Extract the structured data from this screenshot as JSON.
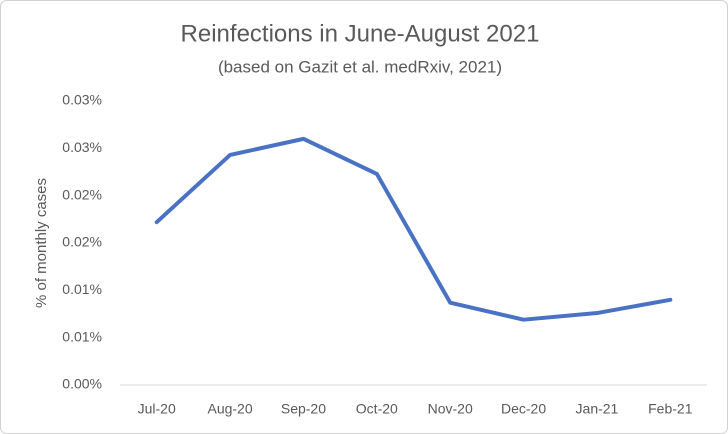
{
  "chart_data": {
    "type": "line",
    "title": "Reinfections in June-August 2021",
    "subtitle": "(based on Gazit et al. medRxiv, 2021)",
    "y_label": "% of monthly cases",
    "categories": [
      "Jul-20",
      "Aug-20",
      "Sep-20",
      "Oct-20",
      "Nov-20",
      "Dec-20",
      "Jan-21",
      "Feb-21"
    ],
    "series": [
      {
        "color": "#4a72c4",
        "values": [
          0.0172,
          0.0243,
          0.026,
          0.0223,
          0.0087,
          0.0069,
          0.0076,
          0.009
        ]
      }
    ],
    "ylim": [
      0,
      0.03
    ],
    "yticks": [
      {
        "value": 0,
        "label": "0.00%"
      },
      {
        "value": 0.005,
        "label": "0.01%"
      },
      {
        "value": 0.01,
        "label": "0.01%"
      },
      {
        "value": 0.015,
        "label": "0.02%"
      },
      {
        "value": 0.02,
        "label": "0.02%"
      },
      {
        "value": 0.025,
        "label": "0.03%"
      },
      {
        "value": 0.03,
        "label": "0.03%"
      }
    ],
    "grid": false
  }
}
